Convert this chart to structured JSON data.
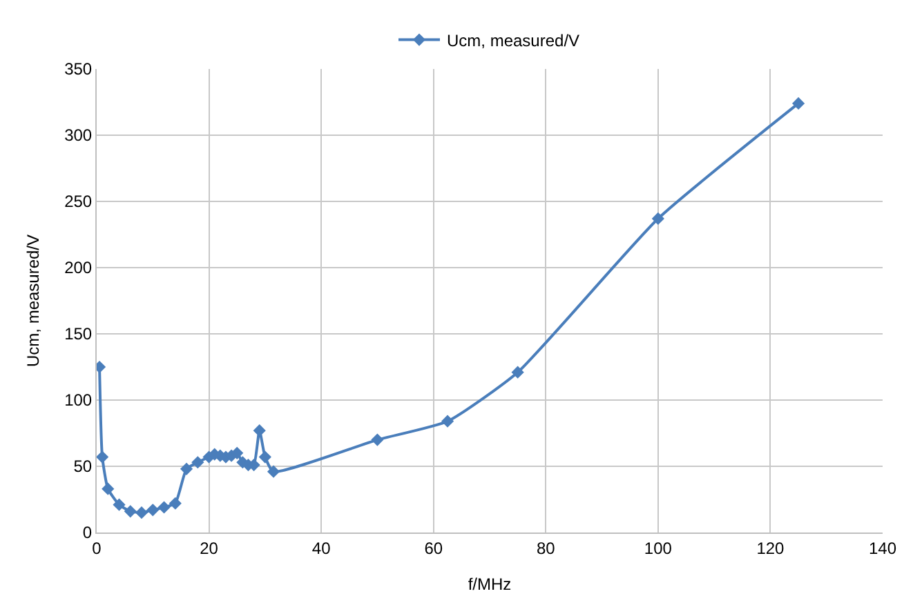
{
  "chart_data": {
    "type": "line",
    "xlabel": "f/MHz",
    "ylabel": "Ucm, measured/V",
    "x": [
      0.5,
      1,
      2,
      4,
      6,
      8,
      10,
      12,
      14,
      16,
      18,
      20,
      21,
      22,
      23,
      24,
      25,
      26,
      27,
      28,
      29,
      30,
      31.5,
      50,
      62.5,
      75,
      100,
      125
    ],
    "series": [
      {
        "name": "Ucm, measured/V",
        "color": "#4a7ebb",
        "values": [
          125,
          57,
          33,
          21,
          16,
          15,
          17,
          19,
          22,
          48,
          53,
          57,
          59,
          58,
          57,
          58,
          60,
          53,
          51,
          51,
          77,
          57,
          46,
          70,
          84,
          121,
          237,
          324
        ]
      }
    ],
    "xlim": [
      0,
      140
    ],
    "xticks": [
      0,
      20,
      40,
      60,
      80,
      100,
      120,
      140
    ],
    "ylim": [
      0,
      350
    ],
    "yticks": [
      0,
      50,
      100,
      150,
      200,
      250,
      300,
      350
    ],
    "grid": true,
    "legend": "top",
    "marker": "diamond",
    "line_style": "solid"
  }
}
